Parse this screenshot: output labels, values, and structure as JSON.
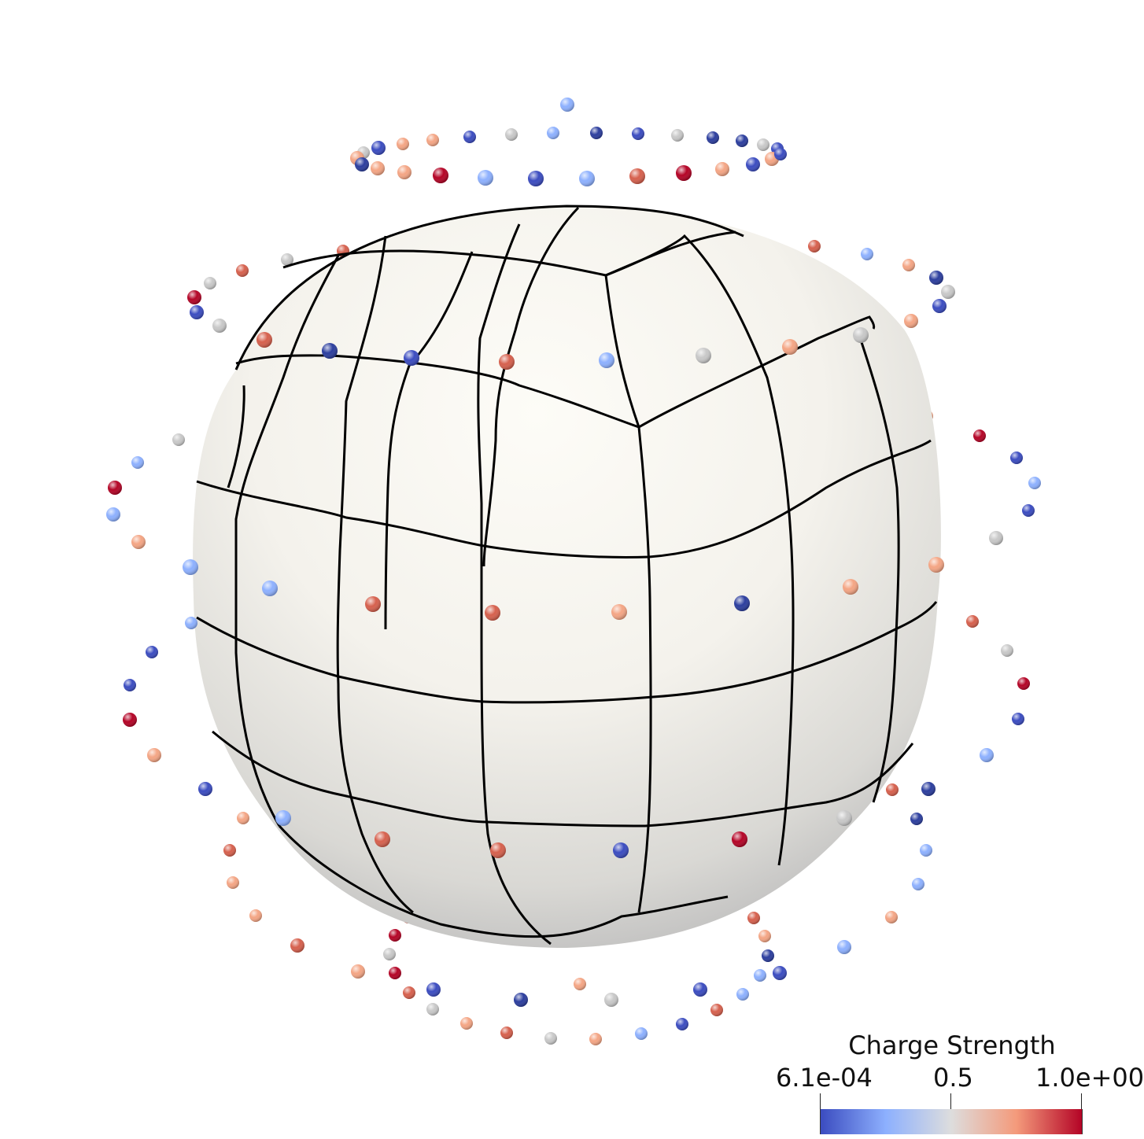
{
  "legend": {
    "title": "Charge Strength",
    "min_label": "6.1e-04",
    "mid_label": "0.5",
    "max_label": "1.0e+00",
    "colormap": [
      "#3b4cc0",
      "#8db0fe",
      "#dddddd",
      "#f49a7b",
      "#b40426"
    ]
  },
  "scene": {
    "surface_color": "#f4f2ec",
    "grid_line_color": "#000000",
    "low_color": "#3b4cc0",
    "high_color": "#b40426"
  }
}
